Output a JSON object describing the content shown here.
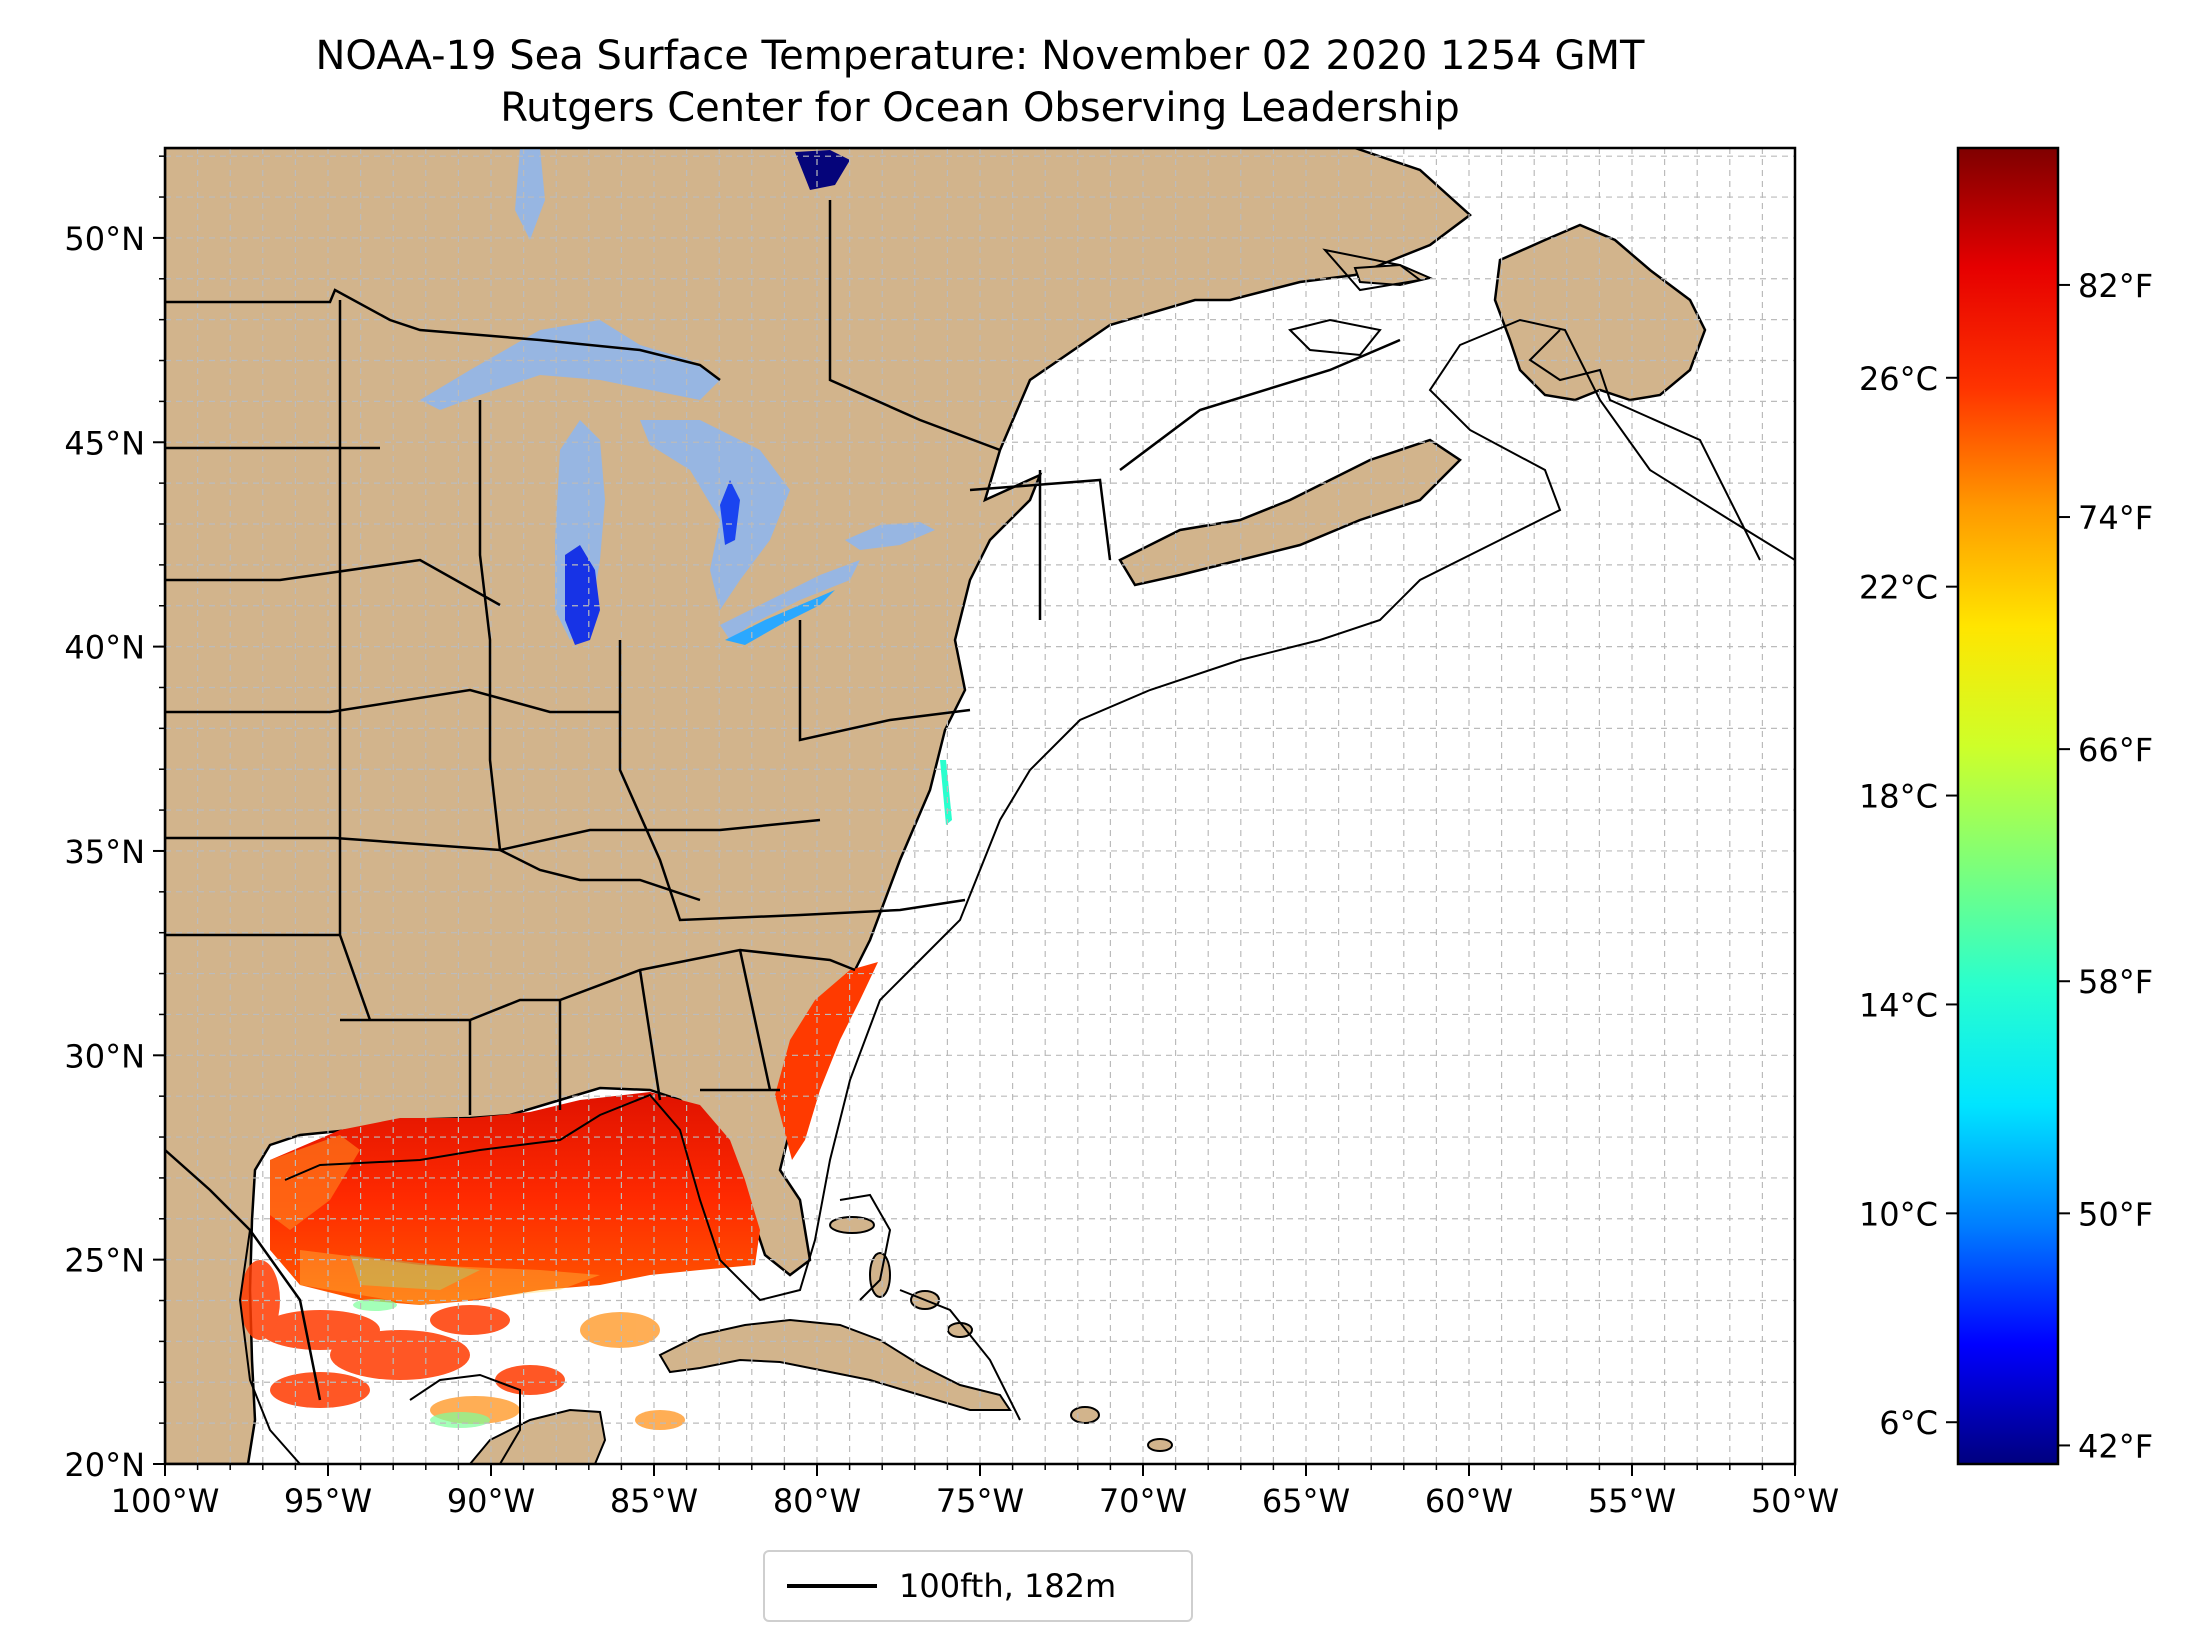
{
  "title": {
    "line1": "NOAA-19 Sea Surface Temperature: November 02 2020 1254 GMT",
    "line2": "Rutgers Center for Ocean Observing Leadership"
  },
  "map": {
    "lon_range": [
      -100,
      -50
    ],
    "lat_range": [
      20,
      52.2
    ],
    "lat_ticks": [
      {
        "value": 20,
        "label": "20°N"
      },
      {
        "value": 25,
        "label": "25°N"
      },
      {
        "value": 30,
        "label": "30°N"
      },
      {
        "value": 35,
        "label": "35°N"
      },
      {
        "value": 40,
        "label": "40°N"
      },
      {
        "value": 45,
        "label": "45°N"
      },
      {
        "value": 50,
        "label": "50°N"
      }
    ],
    "lon_ticks": [
      {
        "value": -100,
        "label": "100°W"
      },
      {
        "value": -95,
        "label": "95°W"
      },
      {
        "value": -90,
        "label": "90°W"
      },
      {
        "value": -85,
        "label": "85°W"
      },
      {
        "value": -80,
        "label": "80°W"
      },
      {
        "value": -75,
        "label": "75°W"
      },
      {
        "value": -70,
        "label": "70°W"
      },
      {
        "value": -65,
        "label": "65°W"
      },
      {
        "value": -60,
        "label": "60°W"
      },
      {
        "value": -55,
        "label": "55°W"
      },
      {
        "value": -50,
        "label": "50°W"
      }
    ],
    "colors": {
      "land": "#d2b48c",
      "lakes": "#97b6e2",
      "ocean": "#ffffff",
      "grid": "#bbbbbb"
    }
  },
  "colorbar": {
    "range_c": [
      5.2,
      30.4
    ],
    "celsius_ticks": [
      {
        "value": 6,
        "label": "6°C"
      },
      {
        "value": 10,
        "label": "10°C"
      },
      {
        "value": 14,
        "label": "14°C"
      },
      {
        "value": 18,
        "label": "18°C"
      },
      {
        "value": 22,
        "label": "22°C"
      },
      {
        "value": 26,
        "label": "26°C"
      }
    ],
    "fahrenheit_ticks": [
      {
        "value": 42,
        "label": "42°F"
      },
      {
        "value": 50,
        "label": "50°F"
      },
      {
        "value": 58,
        "label": "58°F"
      },
      {
        "value": 66,
        "label": "66°F"
      },
      {
        "value": 74,
        "label": "74°F"
      },
      {
        "value": 82,
        "label": "82°F"
      }
    ],
    "gradient_stops": [
      "#00007f",
      "#0000ff",
      "#007fff",
      "#00e5ff",
      "#29ffce",
      "#7dff7a",
      "#ceff29",
      "#ffe500",
      "#ff9900",
      "#ff3300",
      "#e60000",
      "#7f0000"
    ]
  },
  "legend": {
    "label": "100fth, 182m"
  }
}
